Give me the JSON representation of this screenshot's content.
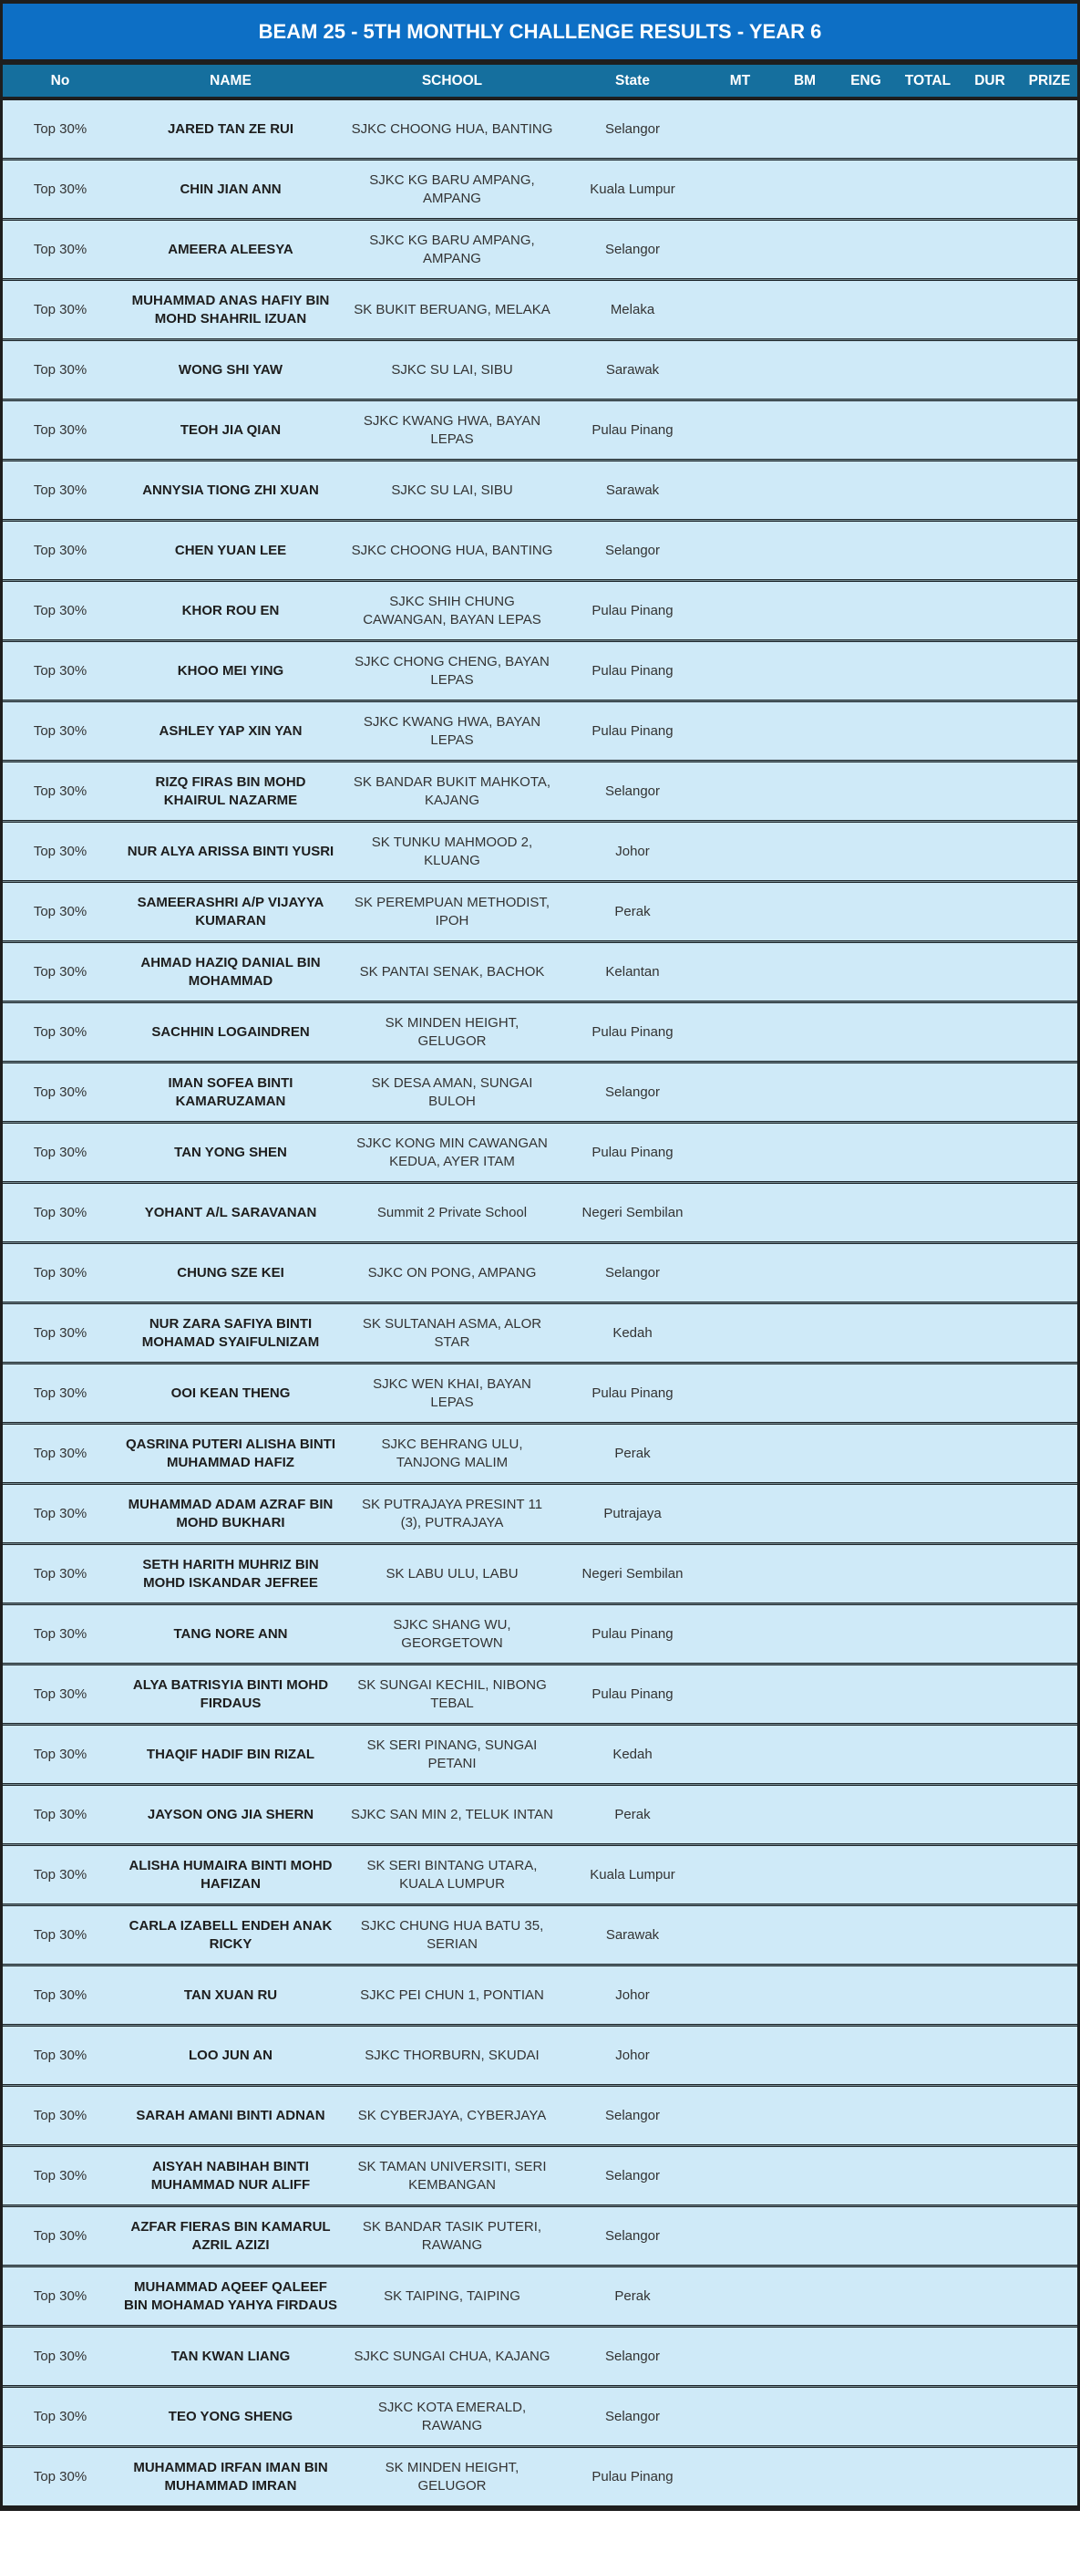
{
  "title": "BEAM 25 - 5TH MONTHLY CHALLENGE RESULTS - YEAR 6",
  "colors": {
    "title_bar": "#0d6fc5",
    "header_bar": "#156f9e",
    "row_background": "#cfeaf8",
    "separator": "#1d262b",
    "header_text": "#ffffff",
    "body_text": "#333333"
  },
  "columns": [
    {
      "key": "no",
      "label": "No"
    },
    {
      "key": "name",
      "label": "NAME"
    },
    {
      "key": "school",
      "label": "SCHOOL"
    },
    {
      "key": "state",
      "label": "State"
    },
    {
      "key": "mt",
      "label": "MT"
    },
    {
      "key": "bm",
      "label": "BM"
    },
    {
      "key": "eng",
      "label": "ENG"
    },
    {
      "key": "total",
      "label": "TOTAL"
    },
    {
      "key": "dur",
      "label": "DUR"
    },
    {
      "key": "prize",
      "label": "PRIZE"
    }
  ],
  "rows": [
    {
      "no": "Top 30%",
      "name": "JARED TAN ZE RUI",
      "school": "SJKC CHOONG HUA, BANTING",
      "state": "Selangor",
      "mt": "",
      "bm": "",
      "eng": "",
      "total": "",
      "dur": "",
      "prize": ""
    },
    {
      "no": "Top 30%",
      "name": "CHIN JIAN ANN",
      "school": "SJKC KG BARU AMPANG, AMPANG",
      "state": "Kuala Lumpur",
      "mt": "",
      "bm": "",
      "eng": "",
      "total": "",
      "dur": "",
      "prize": ""
    },
    {
      "no": "Top 30%",
      "name": "AMEERA ALEESYA",
      "school": "SJKC KG BARU AMPANG, AMPANG",
      "state": "Selangor",
      "mt": "",
      "bm": "",
      "eng": "",
      "total": "",
      "dur": "",
      "prize": ""
    },
    {
      "no": "Top 30%",
      "name": "MUHAMMAD ANAS HAFIY BIN MOHD SHAHRIL IZUAN",
      "school": "SK BUKIT BERUANG, MELAKA",
      "state": "Melaka",
      "mt": "",
      "bm": "",
      "eng": "",
      "total": "",
      "dur": "",
      "prize": ""
    },
    {
      "no": "Top 30%",
      "name": "WONG SHI YAW",
      "school": "SJKC SU LAI, SIBU",
      "state": "Sarawak",
      "mt": "",
      "bm": "",
      "eng": "",
      "total": "",
      "dur": "",
      "prize": ""
    },
    {
      "no": "Top 30%",
      "name": "TEOH JIA QIAN",
      "school": "SJKC KWANG HWA, BAYAN LEPAS",
      "state": "Pulau Pinang",
      "mt": "",
      "bm": "",
      "eng": "",
      "total": "",
      "dur": "",
      "prize": ""
    },
    {
      "no": "Top 30%",
      "name": "ANNYSIA TIONG ZHI XUAN",
      "school": "SJKC SU LAI, SIBU",
      "state": "Sarawak",
      "mt": "",
      "bm": "",
      "eng": "",
      "total": "",
      "dur": "",
      "prize": ""
    },
    {
      "no": "Top 30%",
      "name": "CHEN YUAN LEE",
      "school": "SJKC CHOONG HUA, BANTING",
      "state": "Selangor",
      "mt": "",
      "bm": "",
      "eng": "",
      "total": "",
      "dur": "",
      "prize": ""
    },
    {
      "no": "Top 30%",
      "name": "KHOR ROU EN",
      "school": "SJKC SHIH CHUNG CAWANGAN, BAYAN LEPAS",
      "state": "Pulau Pinang",
      "mt": "",
      "bm": "",
      "eng": "",
      "total": "",
      "dur": "",
      "prize": ""
    },
    {
      "no": "Top 30%",
      "name": "KHOO MEI YING",
      "school": "SJKC CHONG CHENG, BAYAN LEPAS",
      "state": "Pulau Pinang",
      "mt": "",
      "bm": "",
      "eng": "",
      "total": "",
      "dur": "",
      "prize": ""
    },
    {
      "no": "Top 30%",
      "name": "ASHLEY YAP XIN YAN",
      "school": "SJKC KWANG HWA, BAYAN LEPAS",
      "state": "Pulau Pinang",
      "mt": "",
      "bm": "",
      "eng": "",
      "total": "",
      "dur": "",
      "prize": ""
    },
    {
      "no": "Top 30%",
      "name": "RIZQ FIRAS BIN MOHD KHAIRUL NAZARME",
      "school": "SK BANDAR BUKIT MAHKOTA, KAJANG",
      "state": "Selangor",
      "mt": "",
      "bm": "",
      "eng": "",
      "total": "",
      "dur": "",
      "prize": ""
    },
    {
      "no": "Top 30%",
      "name": "NUR ALYA ARISSA BINTI YUSRI",
      "school": "SK TUNKU MAHMOOD 2, KLUANG",
      "state": "Johor",
      "mt": "",
      "bm": "",
      "eng": "",
      "total": "",
      "dur": "",
      "prize": ""
    },
    {
      "no": "Top 30%",
      "name": "SAMEERASHRI A/P VIJAYYA KUMARAN",
      "school": "SK PEREMPUAN METHODIST, IPOH",
      "state": "Perak",
      "mt": "",
      "bm": "",
      "eng": "",
      "total": "",
      "dur": "",
      "prize": ""
    },
    {
      "no": "Top 30%",
      "name": "AHMAD HAZIQ DANIAL BIN MOHAMMAD",
      "school": "SK PANTAI SENAK, BACHOK",
      "state": "Kelantan",
      "mt": "",
      "bm": "",
      "eng": "",
      "total": "",
      "dur": "",
      "prize": ""
    },
    {
      "no": "Top 30%",
      "name": "SACHHIN LOGAINDREN",
      "school": "SK MINDEN HEIGHT, GELUGOR",
      "state": "Pulau Pinang",
      "mt": "",
      "bm": "",
      "eng": "",
      "total": "",
      "dur": "",
      "prize": ""
    },
    {
      "no": "Top 30%",
      "name": "IMAN SOFEA BINTI KAMARUZAMAN",
      "school": "SK DESA AMAN, SUNGAI BULOH",
      "state": "Selangor",
      "mt": "",
      "bm": "",
      "eng": "",
      "total": "",
      "dur": "",
      "prize": ""
    },
    {
      "no": "Top 30%",
      "name": "TAN YONG SHEN",
      "school": "SJKC KONG MIN CAWANGAN KEDUA, AYER ITAM",
      "state": "Pulau Pinang",
      "mt": "",
      "bm": "",
      "eng": "",
      "total": "",
      "dur": "",
      "prize": ""
    },
    {
      "no": "Top 30%",
      "name": "YOHANT A/L SARAVANAN",
      "school": "Summit 2 Private School",
      "state": "Negeri Sembilan",
      "mt": "",
      "bm": "",
      "eng": "",
      "total": "",
      "dur": "",
      "prize": ""
    },
    {
      "no": "Top 30%",
      "name": "CHUNG SZE KEI",
      "school": "SJKC ON PONG, AMPANG",
      "state": "Selangor",
      "mt": "",
      "bm": "",
      "eng": "",
      "total": "",
      "dur": "",
      "prize": ""
    },
    {
      "no": "Top 30%",
      "name": "NUR ZARA SAFIYA BINTI MOHAMAD SYAIFULNIZAM",
      "school": "SK SULTANAH ASMA, ALOR STAR",
      "state": "Kedah",
      "mt": "",
      "bm": "",
      "eng": "",
      "total": "",
      "dur": "",
      "prize": ""
    },
    {
      "no": "Top 30%",
      "name": "OOI KEAN THENG",
      "school": "SJKC WEN KHAI, BAYAN LEPAS",
      "state": "Pulau Pinang",
      "mt": "",
      "bm": "",
      "eng": "",
      "total": "",
      "dur": "",
      "prize": ""
    },
    {
      "no": "Top 30%",
      "name": "QASRINA PUTERI ALISHA BINTI MUHAMMAD HAFIZ",
      "school": "SJKC BEHRANG ULU, TANJONG MALIM",
      "state": "Perak",
      "mt": "",
      "bm": "",
      "eng": "",
      "total": "",
      "dur": "",
      "prize": ""
    },
    {
      "no": "Top 30%",
      "name": "MUHAMMAD ADAM AZRAF BIN MOHD BUKHARI",
      "school": "SK PUTRAJAYA PRESINT 11 (3), PUTRAJAYA",
      "state": "Putrajaya",
      "mt": "",
      "bm": "",
      "eng": "",
      "total": "",
      "dur": "",
      "prize": ""
    },
    {
      "no": "Top 30%",
      "name": "SETH HARITH MUHRIZ BIN MOHD ISKANDAR JEFREE",
      "school": "SK LABU ULU, LABU",
      "state": "Negeri Sembilan",
      "mt": "",
      "bm": "",
      "eng": "",
      "total": "",
      "dur": "",
      "prize": ""
    },
    {
      "no": "Top 30%",
      "name": "TANG NORE ANN",
      "school": "SJKC SHANG WU, GEORGETOWN",
      "state": "Pulau Pinang",
      "mt": "",
      "bm": "",
      "eng": "",
      "total": "",
      "dur": "",
      "prize": ""
    },
    {
      "no": "Top 30%",
      "name": "ALYA BATRISYIA BINTI MOHD FIRDAUS",
      "school": "SK SUNGAI KECHIL, NIBONG TEBAL",
      "state": "Pulau Pinang",
      "mt": "",
      "bm": "",
      "eng": "",
      "total": "",
      "dur": "",
      "prize": ""
    },
    {
      "no": "Top 30%",
      "name": "THAQIF HADIF BIN RIZAL",
      "school": "SK SERI PINANG, SUNGAI PETANI",
      "state": "Kedah",
      "mt": "",
      "bm": "",
      "eng": "",
      "total": "",
      "dur": "",
      "prize": ""
    },
    {
      "no": "Top 30%",
      "name": "JAYSON ONG JIA SHERN",
      "school": "SJKC SAN MIN 2, TELUK INTAN",
      "state": "Perak",
      "mt": "",
      "bm": "",
      "eng": "",
      "total": "",
      "dur": "",
      "prize": ""
    },
    {
      "no": "Top 30%",
      "name": "ALISHA HUMAIRA BINTI MOHD HAFIZAN",
      "school": "SK SERI BINTANG UTARA, KUALA LUMPUR",
      "state": "Kuala Lumpur",
      "mt": "",
      "bm": "",
      "eng": "",
      "total": "",
      "dur": "",
      "prize": ""
    },
    {
      "no": "Top 30%",
      "name": "CARLA IZABELL ENDEH ANAK RICKY",
      "school": "SJKC CHUNG HUA BATU 35, SERIAN",
      "state": "Sarawak",
      "mt": "",
      "bm": "",
      "eng": "",
      "total": "",
      "dur": "",
      "prize": ""
    },
    {
      "no": "Top 30%",
      "name": "TAN XUAN RU",
      "school": "SJKC PEI CHUN 1, PONTIAN",
      "state": "Johor",
      "mt": "",
      "bm": "",
      "eng": "",
      "total": "",
      "dur": "",
      "prize": ""
    },
    {
      "no": "Top 30%",
      "name": "LOO JUN AN",
      "school": "SJKC THORBURN, SKUDAI",
      "state": "Johor",
      "mt": "",
      "bm": "",
      "eng": "",
      "total": "",
      "dur": "",
      "prize": ""
    },
    {
      "no": "Top 30%",
      "name": "SARAH AMANI BINTI ADNAN",
      "school": "SK CYBERJAYA, CYBERJAYA",
      "state": "Selangor",
      "mt": "",
      "bm": "",
      "eng": "",
      "total": "",
      "dur": "",
      "prize": ""
    },
    {
      "no": "Top 30%",
      "name": "AISYAH NABIHAH BINTI MUHAMMAD NUR ALIFF",
      "school": "SK TAMAN UNIVERSITI, SERI KEMBANGAN",
      "state": "Selangor",
      "mt": "",
      "bm": "",
      "eng": "",
      "total": "",
      "dur": "",
      "prize": ""
    },
    {
      "no": "Top 30%",
      "name": "AZFAR FIERAS BIN KAMARUL AZRIL AZIZI",
      "school": "SK BANDAR TASIK PUTERI, RAWANG",
      "state": "Selangor",
      "mt": "",
      "bm": "",
      "eng": "",
      "total": "",
      "dur": "",
      "prize": ""
    },
    {
      "no": "Top 30%",
      "name": "MUHAMMAD AQEEF QALEEF BIN MOHAMAD YAHYA FIRDAUS",
      "school": "SK TAIPING, TAIPING",
      "state": "Perak",
      "mt": "",
      "bm": "",
      "eng": "",
      "total": "",
      "dur": "",
      "prize": ""
    },
    {
      "no": "Top 30%",
      "name": "TAN KWAN LIANG",
      "school": "SJKC SUNGAI CHUA, KAJANG",
      "state": "Selangor",
      "mt": "",
      "bm": "",
      "eng": "",
      "total": "",
      "dur": "",
      "prize": ""
    },
    {
      "no": "Top 30%",
      "name": "TEO YONG SHENG",
      "school": "SJKC KOTA EMERALD, RAWANG",
      "state": "Selangor",
      "mt": "",
      "bm": "",
      "eng": "",
      "total": "",
      "dur": "",
      "prize": ""
    },
    {
      "no": "Top 30%",
      "name": "MUHAMMAD IRFAN IMAN BIN MUHAMMAD IMRAN",
      "school": "SK MINDEN HEIGHT, GELUGOR",
      "state": "Pulau Pinang",
      "mt": "",
      "bm": "",
      "eng": "",
      "total": "",
      "dur": "",
      "prize": ""
    }
  ]
}
